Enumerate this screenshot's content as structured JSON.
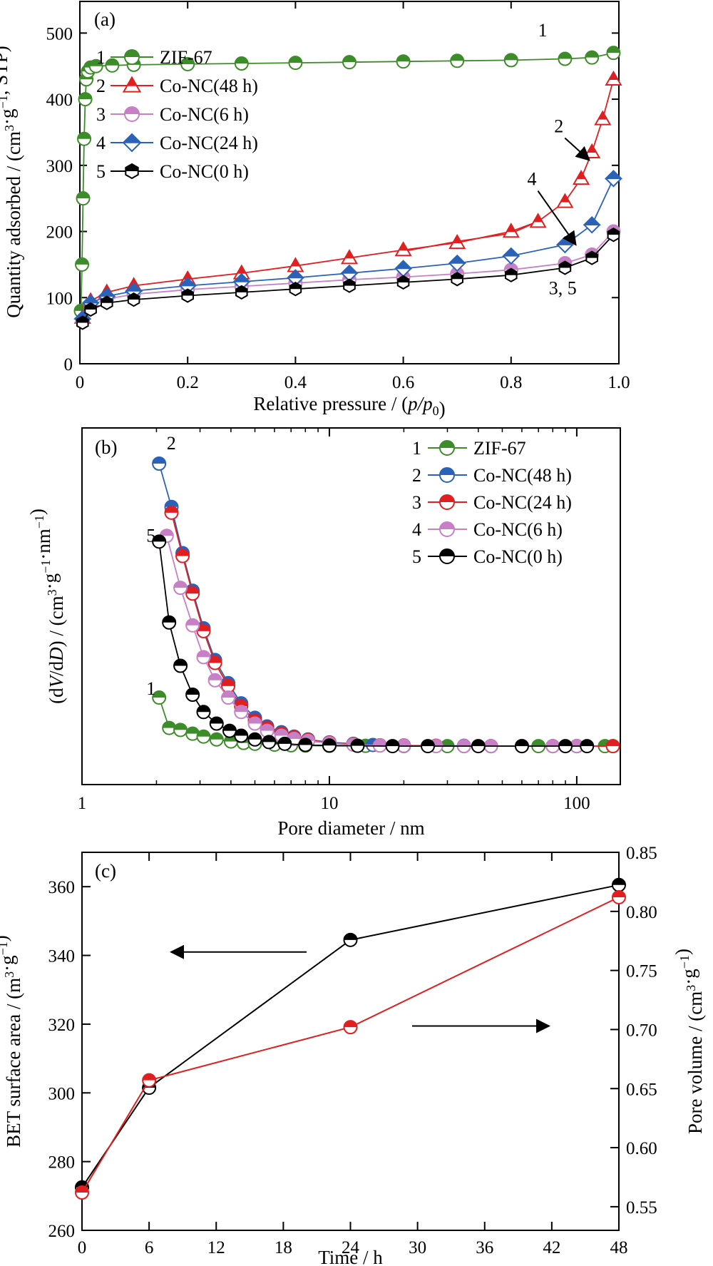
{
  "chart_data": [
    {
      "panel": "(a)",
      "type": "scatter",
      "xlabel": "Relative pressure / (p/p0)",
      "ylabel": "Quantity adsorbed / (cm3·g−1, STP)",
      "xlim": [
        0,
        1.0
      ],
      "ylim": [
        0,
        550
      ],
      "xticks": [
        "0",
        "0.2",
        "0.4",
        "0.6",
        "0.8",
        "1.0"
      ],
      "yticks": [
        "0",
        "100",
        "200",
        "300",
        "400",
        "500"
      ],
      "legend_position": "upper-left",
      "series": [
        {
          "number": "1",
          "name": "ZIF-67",
          "color": "#3d8c2a",
          "marker": "circle",
          "x": [
            0.002,
            0.004,
            0.006,
            0.008,
            0.01,
            0.012,
            0.015,
            0.02,
            0.03,
            0.06,
            0.1,
            0.2,
            0.3,
            0.4,
            0.5,
            0.6,
            0.7,
            0.8,
            0.9,
            0.95,
            0.99
          ],
          "y": [
            80,
            150,
            250,
            340,
            400,
            430,
            442,
            448,
            450,
            451,
            452,
            453,
            454,
            455,
            456,
            457,
            458,
            459,
            461,
            463,
            470
          ]
        },
        {
          "number": "2",
          "name": "Co-NC(48 h)",
          "color": "#e02020",
          "marker": "triangle",
          "x": [
            0.005,
            0.02,
            0.05,
            0.1,
            0.2,
            0.3,
            0.4,
            0.5,
            0.6,
            0.7,
            0.8,
            0.85,
            0.9,
            0.93,
            0.95,
            0.97,
            0.99
          ],
          "y": [
            70,
            95,
            108,
            118,
            128,
            137,
            148,
            160,
            172,
            183,
            200,
            215,
            245,
            280,
            320,
            370,
            430
          ],
          "desorption_y": [
            170,
            185,
            197,
            215
          ]
        },
        {
          "number": "3",
          "name": "Co-NC(6 h)",
          "color": "#c77fc6",
          "marker": "circle",
          "x": [
            0.005,
            0.02,
            0.05,
            0.1,
            0.2,
            0.3,
            0.4,
            0.5,
            0.6,
            0.7,
            0.8,
            0.9,
            0.95,
            0.99
          ],
          "y": [
            65,
            88,
            98,
            105,
            112,
            117,
            122,
            127,
            131,
            136,
            142,
            152,
            165,
            200
          ]
        },
        {
          "number": "4",
          "name": "Co-NC(24 h)",
          "color": "#2a62b8",
          "marker": "diamond",
          "x": [
            0.005,
            0.02,
            0.05,
            0.1,
            0.2,
            0.3,
            0.4,
            0.5,
            0.6,
            0.7,
            0.8,
            0.9,
            0.95,
            0.99
          ],
          "y": [
            68,
            92,
            102,
            110,
            118,
            124,
            130,
            137,
            144,
            152,
            163,
            180,
            210,
            280
          ]
        },
        {
          "number": "5",
          "name": "Co-NC(0 h)",
          "color": "#000000",
          "marker": "hexagon",
          "x": [
            0.005,
            0.02,
            0.05,
            0.1,
            0.2,
            0.3,
            0.4,
            0.5,
            0.6,
            0.7,
            0.8,
            0.9,
            0.95,
            0.99
          ],
          "y": [
            62,
            82,
            92,
            97,
            103,
            108,
            113,
            118,
            123,
            128,
            134,
            145,
            160,
            195
          ]
        }
      ],
      "annotations": [
        {
          "text": "1",
          "x": 0.85,
          "y": 495
        },
        {
          "text": "2",
          "x": 0.88,
          "y": 350,
          "arrow_to": [
            0.945,
            308
          ]
        },
        {
          "text": "4",
          "x": 0.83,
          "y": 270,
          "arrow_to": [
            0.92,
            180
          ]
        },
        {
          "text": "3, 5",
          "x": 0.87,
          "y": 105
        }
      ]
    },
    {
      "panel": "(b)",
      "type": "line",
      "xscale": "log",
      "xlabel": "Pore diameter / nm",
      "ylabel": "(dV/dD) / (cm3·g−1·nm−1)",
      "xlim": [
        1,
        150
      ],
      "xticks": [
        "1",
        "10",
        "100"
      ],
      "legend_position": "upper-right",
      "series": [
        {
          "number": "1",
          "name": "ZIF-67",
          "color": "#3d8c2a",
          "x": [
            2.05,
            2.25,
            2.5,
            2.8,
            3.1,
            3.5,
            4,
            4.5,
            5,
            6,
            7,
            8,
            10,
            14,
            20,
            30,
            45,
            70,
            100,
            130
          ],
          "y": [
            0.19,
            0.085,
            0.078,
            0.065,
            0.055,
            0.045,
            0.038,
            0.033,
            0.03,
            0.027,
            0.025,
            0.024,
            0.023,
            0.023,
            0.022,
            0.022,
            0.022,
            0.022,
            0.022,
            0.022
          ]
        },
        {
          "number": "2",
          "name": "Co-NC(48 h)",
          "color": "#2a62b8",
          "x": [
            2.05,
            2.3,
            2.55,
            2.8,
            3.1,
            3.45,
            3.9,
            4.4,
            5,
            5.6,
            6.4,
            7.2,
            8.2,
            10,
            12.5,
            15,
            20,
            27,
            35,
            45,
            60,
            80,
            100,
            140
          ],
          "y": [
            1.0,
            0.85,
            0.69,
            0.56,
            0.43,
            0.32,
            0.24,
            0.17,
            0.12,
            0.09,
            0.07,
            0.055,
            0.045,
            0.035,
            0.03,
            0.026,
            0.024,
            0.023,
            0.023,
            0.022,
            0.022,
            0.022,
            0.022,
            0.022
          ]
        },
        {
          "number": "3",
          "name": "Co-NC(24 h)",
          "color": "#e02020",
          "x": [
            2.3,
            2.55,
            2.8,
            3.1,
            3.45,
            3.9,
            4.4,
            5,
            5.6,
            6.4,
            7.2,
            8.2,
            10,
            12.5,
            16,
            20,
            27,
            35,
            45,
            60,
            80,
            100,
            140
          ],
          "y": [
            0.83,
            0.68,
            0.55,
            0.42,
            0.31,
            0.23,
            0.16,
            0.11,
            0.085,
            0.065,
            0.052,
            0.043,
            0.034,
            0.028,
            0.025,
            0.024,
            0.023,
            0.022,
            0.022,
            0.022,
            0.022,
            0.022,
            0.022
          ]
        },
        {
          "number": "4",
          "name": "Co-NC(6 h)",
          "color": "#c77fc6",
          "x": [
            2.2,
            2.5,
            2.8,
            3.1,
            3.45,
            3.9,
            4.4,
            5,
            5.6,
            6.4,
            7.2,
            8.2,
            10,
            12.5,
            16,
            20,
            27,
            35,
            45,
            60,
            80,
            100
          ],
          "y": [
            0.75,
            0.57,
            0.44,
            0.33,
            0.25,
            0.19,
            0.14,
            0.1,
            0.075,
            0.058,
            0.047,
            0.04,
            0.032,
            0.027,
            0.024,
            0.023,
            0.022,
            0.022,
            0.022,
            0.022,
            0.022,
            0.022
          ]
        },
        {
          "number": "5",
          "name": "Co-NC(0 h)",
          "color": "#000000",
          "x": [
            2.05,
            2.25,
            2.5,
            2.8,
            3.1,
            3.5,
            3.95,
            4.4,
            5,
            5.7,
            6.6,
            8,
            10,
            13,
            18,
            25,
            40,
            60,
            90,
            110
          ],
          "y": [
            0.73,
            0.45,
            0.3,
            0.2,
            0.14,
            0.1,
            0.075,
            0.058,
            0.045,
            0.036,
            0.03,
            0.026,
            0.024,
            0.023,
            0.022,
            0.022,
            0.022,
            0.022,
            0.022,
            0.022
          ]
        }
      ],
      "annotations": [
        {
          "text": "2",
          "x": 2.2,
          "y": 1.05
        },
        {
          "text": "5",
          "x": 1.82,
          "y": 0.73
        },
        {
          "text": "1",
          "x": 1.82,
          "y": 0.2
        }
      ]
    },
    {
      "panel": "(c)",
      "type": "line",
      "xlabel": "Time / h",
      "ylabel_left": "BET surface area / (m3·g−1)",
      "ylabel_right": "Pore volume / (cm3·g−1)",
      "xlim": [
        0,
        48
      ],
      "ylim_left": [
        260,
        370
      ],
      "ylim_right": [
        0.53,
        0.85
      ],
      "xticks": [
        "0",
        "6",
        "12",
        "18",
        "24",
        "30",
        "36",
        "42",
        "48"
      ],
      "yticks_left": [
        "260",
        "280",
        "300",
        "320",
        "340",
        "360"
      ],
      "yticks_right": [
        "0.55",
        "0.60",
        "0.65",
        "0.70",
        "0.75",
        "0.80",
        "0.85"
      ],
      "series": [
        {
          "name": "BET surface area",
          "axis": "left",
          "color": "#000000",
          "x": [
            0,
            6,
            24,
            48
          ],
          "y": [
            272.5,
            301.5,
            344.5,
            360.5
          ]
        },
        {
          "name": "Pore volume",
          "axis": "right",
          "color": "#e02020",
          "x": [
            0,
            6,
            24,
            48
          ],
          "y": [
            0.562,
            0.657,
            0.702,
            0.812
          ]
        }
      ],
      "annotations": [
        {
          "text": "←",
          "x": 16,
          "y": 341
        },
        {
          "text": "→",
          "x": 30,
          "y": 0.703
        }
      ]
    }
  ]
}
